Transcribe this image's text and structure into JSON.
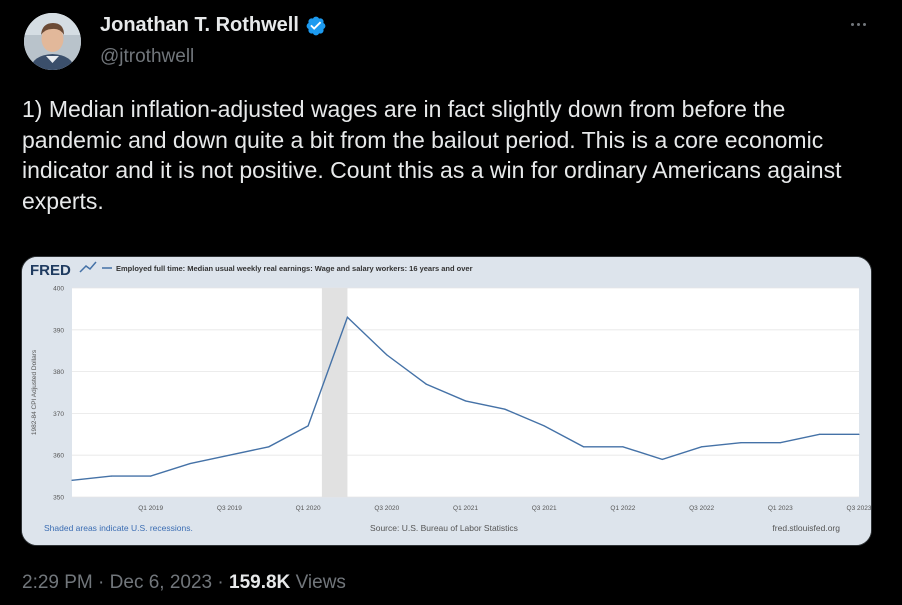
{
  "tweet": {
    "display_name": "Jonathan T. Rothwell",
    "handle": "@jtrothwell",
    "verified": true,
    "text": "1) Median inflation-adjusted wages are in fact slightly down from before the pandemic and down quite a bit from the bailout period. This is a core economic indicator and it is not positive. Count this as a win for ordinary Americans against experts.",
    "time": "2:29 PM",
    "date": "Dec 6, 2023",
    "views_count": "159.8K",
    "views_label": "Views",
    "separator": "·"
  },
  "colors": {
    "verified_badge": "#1d9bf0",
    "line": "#4572a7",
    "recession_shade": "#e1e1e1",
    "fred_link": "#3b6db3"
  },
  "chart": {
    "brand": "FRED",
    "series_title": "Employed full time: Median usual weekly real earnings: Wage and salary workers: 16 years and over",
    "footer_left": "Shaded areas indicate U.S. recessions.",
    "footer_center": "Source: U.S. Bureau of Labor Statistics",
    "footer_right": "fred.stlouisfed.org"
  },
  "chart_data": {
    "type": "line",
    "title": "Employed full time: Median usual weekly real earnings: Wage and salary workers: 16 years and over",
    "xlabel": "",
    "ylabel": "1982-84 CPI Adjusted Dollars",
    "ylim": [
      350,
      400
    ],
    "yticks": [
      350,
      360,
      370,
      380,
      390,
      400
    ],
    "xtick_labels": [
      "Q1 2019",
      "Q3 2019",
      "Q1 2020",
      "Q3 2020",
      "Q1 2021",
      "Q3 2021",
      "Q1 2022",
      "Q3 2022",
      "Q1 2023",
      "Q3 2023"
    ],
    "recession": [
      "Q1 2020",
      "Q2 2020"
    ],
    "grid": true,
    "series": [
      {
        "x": [
          "Q3 2018",
          "Q4 2018",
          "Q1 2019",
          "Q2 2019",
          "Q3 2019",
          "Q4 2019",
          "Q1 2020",
          "Q2 2020",
          "Q3 2020",
          "Q4 2020",
          "Q1 2021",
          "Q2 2021",
          "Q3 2021",
          "Q4 2021",
          "Q1 2022",
          "Q2 2022",
          "Q3 2022",
          "Q4 2022",
          "Q1 2023",
          "Q2 2023",
          "Q3 2023"
        ],
        "values": [
          354,
          355,
          355,
          358,
          360,
          362,
          367,
          393,
          384,
          377,
          373,
          371,
          367,
          362,
          362,
          359,
          362,
          363,
          363,
          365,
          365
        ]
      }
    ]
  }
}
